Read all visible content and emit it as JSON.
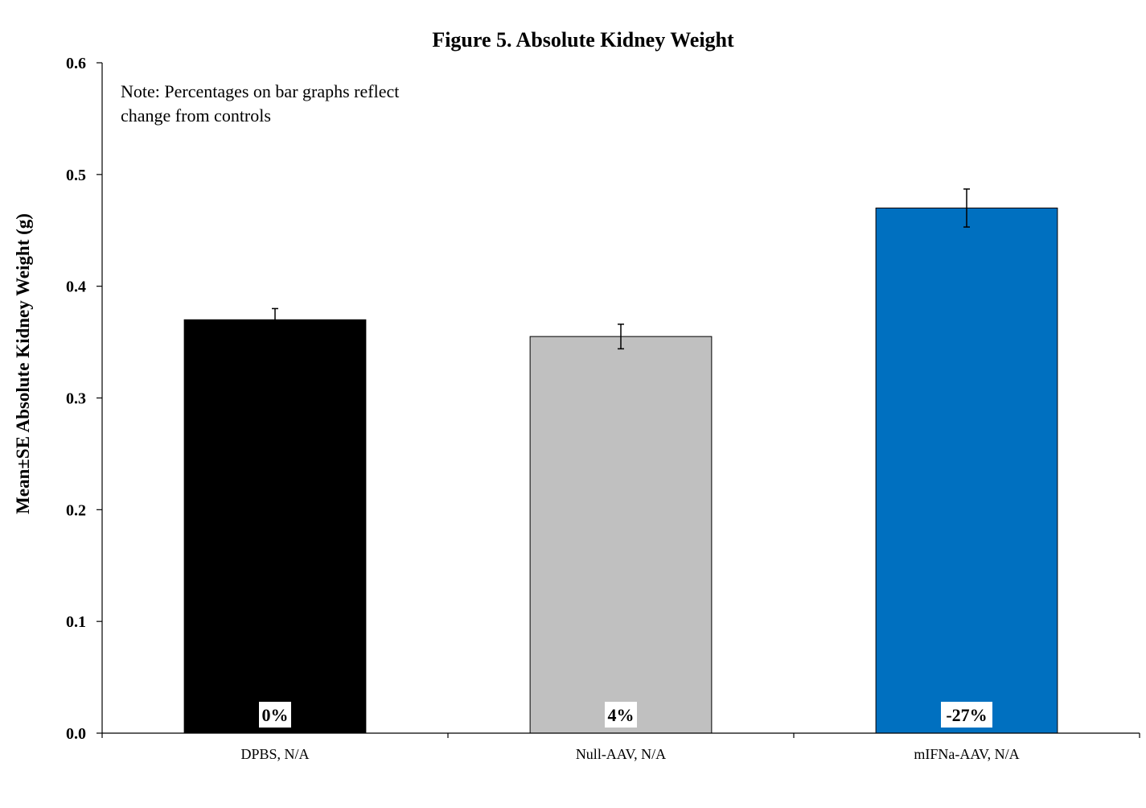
{
  "chart_data": {
    "type": "bar",
    "title": "Figure 5. Absolute Kidney Weight",
    "ylabel": "Mean±SE Absolute Kidney Weight (g)",
    "xlabel": "",
    "ylim": [
      0,
      0.6
    ],
    "yticks": [
      "0.0",
      "0.1",
      "0.2",
      "0.3",
      "0.4",
      "0.5",
      "0.6"
    ],
    "categories": [
      "DPBS, N/A",
      "Null-AAV, N/A",
      "mIFNa-AAV, N/A"
    ],
    "values": [
      0.37,
      0.355,
      0.47
    ],
    "errors": [
      0.01,
      0.011,
      0.017
    ],
    "colors": [
      "#000000",
      "#c0c0c0",
      "#0070c0"
    ],
    "pct_labels": [
      "0%",
      "4%",
      "-27%"
    ],
    "note_lines": [
      "Note: Percentages on bar graphs reflect",
      "change from controls"
    ],
    "grid": false,
    "legend": "none"
  }
}
